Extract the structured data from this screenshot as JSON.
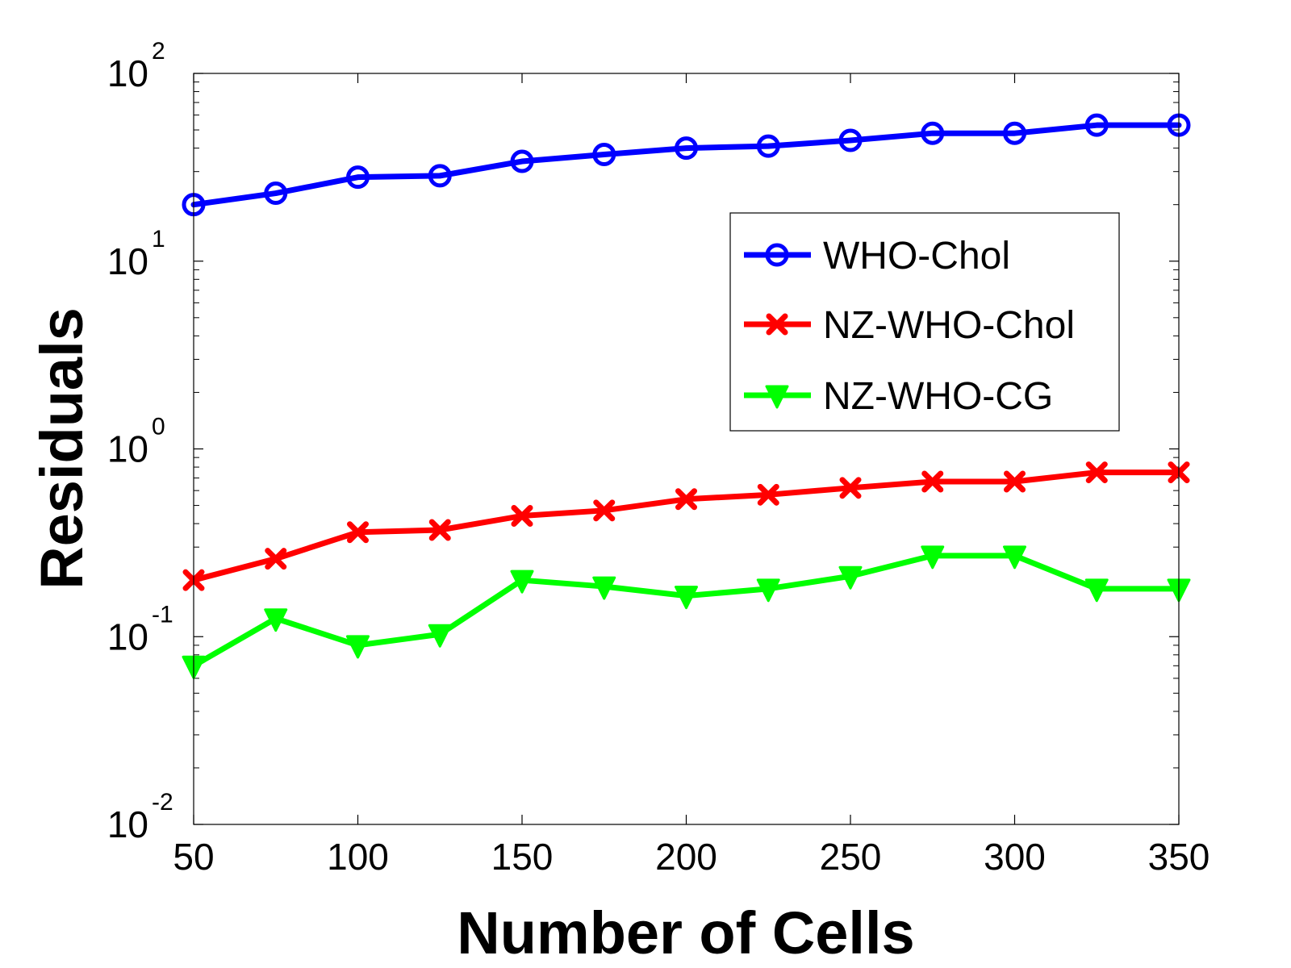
{
  "chart_data": {
    "type": "line",
    "xlabel": "Number of Cells",
    "ylabel": "Residuals",
    "x": [
      50,
      75,
      100,
      125,
      150,
      175,
      200,
      225,
      250,
      275,
      300,
      325,
      350
    ],
    "xlim": [
      50,
      350
    ],
    "xticks": [
      "50",
      "100",
      "150",
      "200",
      "250",
      "300",
      "350"
    ],
    "yscale": "log",
    "ylim": [
      0.01,
      100
    ],
    "yticks": [
      {
        "base": "10",
        "exp": "-2"
      },
      {
        "base": "10",
        "exp": "-1"
      },
      {
        "base": "10",
        "exp": "0"
      },
      {
        "base": "10",
        "exp": "1"
      },
      {
        "base": "10",
        "exp": "2"
      }
    ],
    "legend_position": "upper-right",
    "series": [
      {
        "name": "WHO-Chol",
        "color": "#0000ff",
        "marker": "circle",
        "values": [
          20,
          23,
          28,
          28.5,
          34,
          37,
          40,
          41,
          44,
          48,
          48,
          53,
          53
        ]
      },
      {
        "name": "NZ-WHO-Chol",
        "color": "#ff0000",
        "marker": "x",
        "values": [
          0.2,
          0.26,
          0.36,
          0.37,
          0.44,
          0.47,
          0.54,
          0.57,
          0.62,
          0.67,
          0.67,
          0.75,
          0.75
        ]
      },
      {
        "name": "NZ-WHO-CG",
        "color": "#00ff00",
        "marker": "triangle-down",
        "values": [
          0.07,
          0.125,
          0.09,
          0.103,
          0.2,
          0.185,
          0.165,
          0.18,
          0.21,
          0.27,
          0.27,
          0.18,
          0.18
        ]
      }
    ]
  }
}
